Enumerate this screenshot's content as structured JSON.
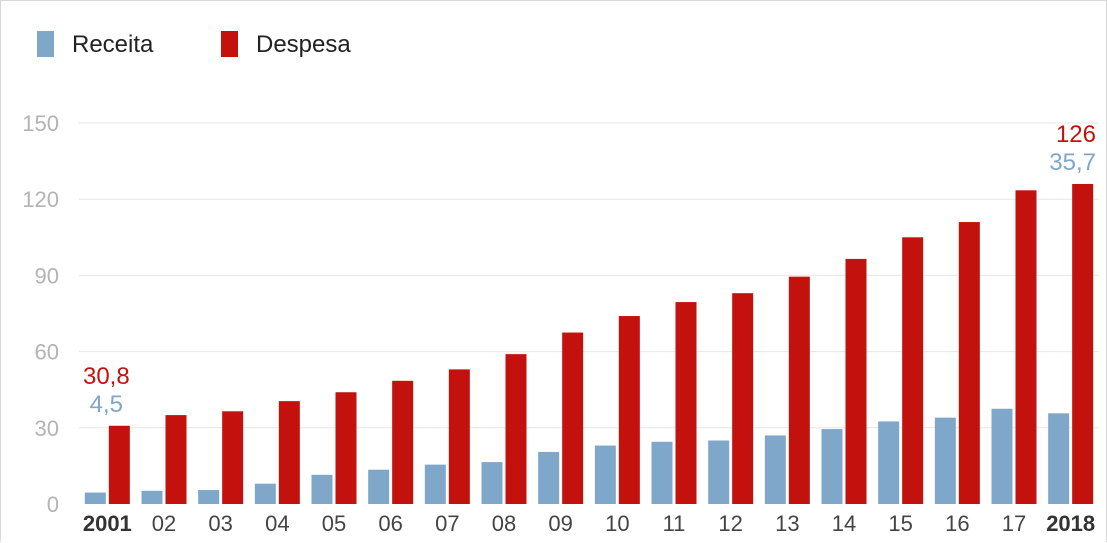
{
  "colors": {
    "receita": "#7fa7c9",
    "despesa": "#c3120e",
    "grid": "#e6e6e6",
    "y_tick": "#b3b3b3",
    "x_tick": "#444444"
  },
  "chart_data": {
    "type": "bar",
    "title": "",
    "xlabel": "",
    "ylabel": "",
    "ylim": [
      0,
      150
    ],
    "y_ticks": [
      0,
      30,
      60,
      90,
      120,
      150
    ],
    "grid": true,
    "legend_position": "top-left",
    "categories": [
      "2001",
      "02",
      "03",
      "04",
      "05",
      "06",
      "07",
      "08",
      "09",
      "10",
      "11",
      "12",
      "13",
      "14",
      "15",
      "16",
      "17",
      "2018"
    ],
    "bold_categories": [
      "2001",
      "2018"
    ],
    "series": [
      {
        "name": "Receita",
        "color": "#7fa7c9",
        "values": [
          4.5,
          5.2,
          5.5,
          8.0,
          11.5,
          13.5,
          15.5,
          16.5,
          20.5,
          23.0,
          24.5,
          25.0,
          27.0,
          29.5,
          32.5,
          34.0,
          37.5,
          35.7
        ]
      },
      {
        "name": "Despesa",
        "color": "#c3120e",
        "values": [
          30.8,
          35.0,
          36.5,
          40.5,
          44.0,
          48.5,
          53.0,
          59.0,
          67.5,
          74.0,
          79.5,
          83.0,
          89.5,
          96.5,
          105.0,
          111.0,
          123.5,
          126
        ]
      }
    ],
    "annotations": [
      {
        "category": "2001",
        "despesa_label": "30,8",
        "receita_label": "4,5"
      },
      {
        "category": "2018",
        "despesa_label": "126",
        "receita_label": "35,7"
      }
    ]
  }
}
